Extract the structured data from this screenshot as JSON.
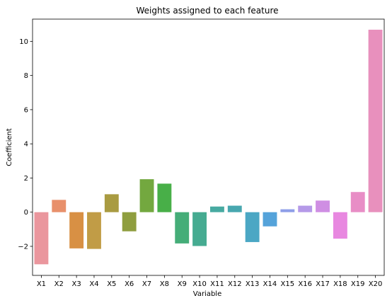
{
  "chart_data": {
    "type": "bar",
    "title": "Weights assigned to each feature",
    "xlabel": "Variable",
    "ylabel": "Coefficient",
    "categories": [
      "X1",
      "X2",
      "X3",
      "X4",
      "X5",
      "X6",
      "X7",
      "X8",
      "X9",
      "X10",
      "X11",
      "X12",
      "X13",
      "X14",
      "X15",
      "X16",
      "X17",
      "X18",
      "X19",
      "X20"
    ],
    "values": [
      -3.05,
      0.72,
      -2.12,
      -2.15,
      1.05,
      -1.12,
      1.93,
      1.67,
      -1.83,
      -1.98,
      0.33,
      0.38,
      -1.75,
      -0.83,
      0.17,
      0.38,
      0.68,
      -1.55,
      1.18,
      10.68
    ],
    "colors": [
      "#ea969d",
      "#e8906b",
      "#d89044",
      "#c19c46",
      "#a99b41",
      "#8f9e3f",
      "#73a83f",
      "#48af48",
      "#45ad78",
      "#46ab91",
      "#47aaa1",
      "#48a7af",
      "#4ba7c4",
      "#55a3da",
      "#8e9ee8",
      "#b599e8",
      "#cf8ee3",
      "#e888e0",
      "#e88dc6",
      "#e890bd"
    ],
    "ylim": [
      -3.7,
      11.3
    ],
    "yticks": [
      -2,
      0,
      2,
      4,
      6,
      8,
      10
    ],
    "grid": false,
    "legend": "none"
  }
}
